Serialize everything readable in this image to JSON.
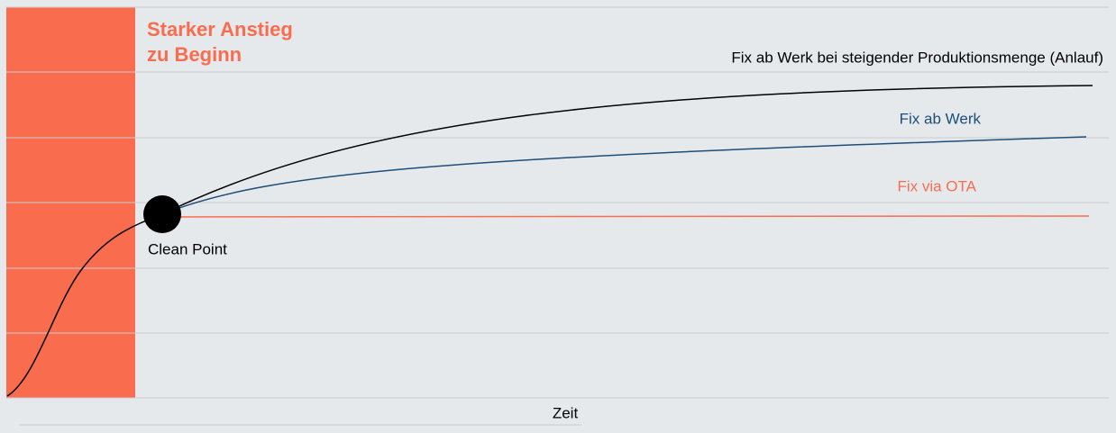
{
  "annotation": {
    "lines": [
      "Starker Anstieg",
      "zu Beginn"
    ]
  },
  "curves": [
    {
      "label": "Fix ab Werk bei steigender Produktionsmenge (Anlauf)"
    },
    {
      "label": "Fix ab Werk"
    },
    {
      "label": "Fix via OTA"
    }
  ],
  "clean_point": {
    "label": "Clean Point"
  },
  "x_axis": {
    "label": "Zeit"
  }
}
